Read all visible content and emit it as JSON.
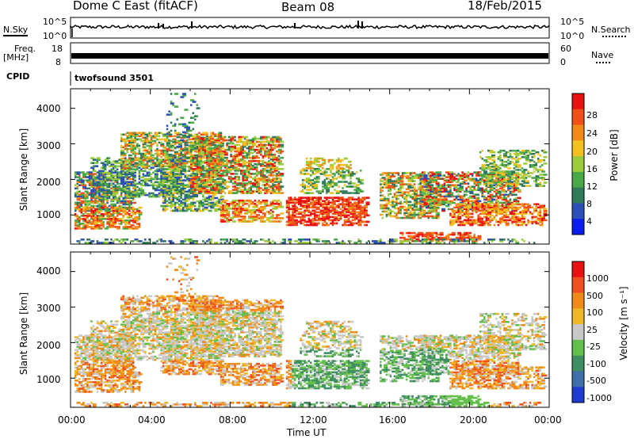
{
  "header": {
    "station": "Dome C East (fitACF)",
    "beam": "Beam 08",
    "date": "18/Feb/2015"
  },
  "top_panels": {
    "nsky_label": "N.Sky",
    "nsky_ticks": [
      "10^5",
      "10^0"
    ],
    "nsearch_label": "N.Search",
    "nsearch_ticks": [
      "10^5",
      "10^0"
    ],
    "freq_label": "Freq.",
    "freq_unit": "[MHz]",
    "freq_ticks": [
      "18",
      "8"
    ],
    "nave_label": "Nave",
    "nave_ticks": [
      "60",
      "0"
    ],
    "cpid_label": "CPID",
    "cpid_value": "twofsound 3501"
  },
  "chart_data": [
    {
      "type": "heatmap",
      "title": "",
      "xlabel": "",
      "ylabel": "Slant Range [km]",
      "x_ticks": [
        "00:00",
        "04:00",
        "08:00",
        "12:00",
        "16:00",
        "20:00",
        "00:00"
      ],
      "y_ticks": [
        1000,
        2000,
        3000,
        4000
      ],
      "xlim_hours": [
        0,
        24
      ],
      "ylim": [
        180,
        4550
      ],
      "colorbar_label": "Power [dB]",
      "colorbar_ticks": [
        "4",
        "8",
        "12",
        "16",
        "20",
        "24",
        "28"
      ],
      "colorbar_colors": [
        "#0a1cf0",
        "#2d4fb8",
        "#2e7a5a",
        "#49a848",
        "#9ccc3a",
        "#f4c020",
        "#f08a18",
        "#f05018",
        "#e81010"
      ],
      "grid": false
    },
    {
      "type": "heatmap",
      "title": "",
      "xlabel": "Time UT",
      "ylabel": "Slant Range [km]",
      "x_ticks": [
        "00:00",
        "04:00",
        "08:00",
        "12:00",
        "16:00",
        "20:00",
        "00:00"
      ],
      "y_ticks": [
        1000,
        2000,
        3000,
        4000
      ],
      "xlim_hours": [
        0,
        24
      ],
      "ylim": [
        180,
        4550
      ],
      "colorbar_label": "Velocity [m s⁻¹]",
      "colorbar_ticks": [
        "1000",
        "500",
        "100",
        "25",
        "-25",
        "-100",
        "-500",
        "-1000"
      ],
      "colorbar_colors": [
        "#1f3cd0",
        "#3e6fa8",
        "#3f8e62",
        "#62c04a",
        "#c8c8c8",
        "#f0b828",
        "#f08a18",
        "#f05020",
        "#e81010"
      ],
      "grid": false
    }
  ]
}
